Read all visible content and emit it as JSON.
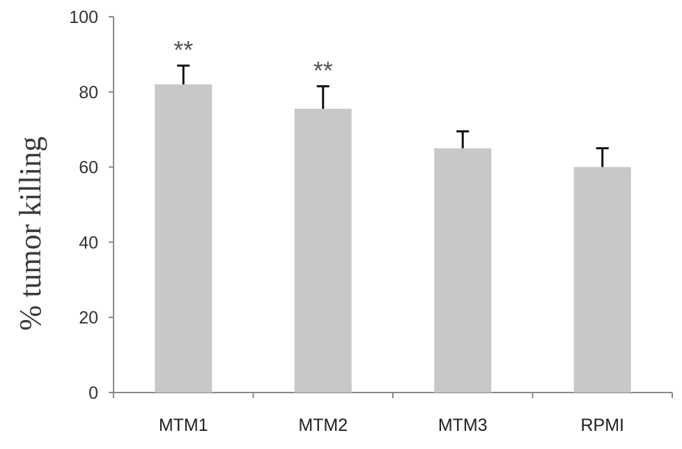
{
  "chart_data": {
    "type": "bar",
    "title": "",
    "xlabel": "",
    "ylabel": "% tumor killing",
    "ylim": [
      0,
      100
    ],
    "yticks": [
      0,
      20,
      40,
      60,
      80,
      100
    ],
    "categories": [
      "MTM1",
      "MTM2",
      "MTM3",
      "RPMI"
    ],
    "values": [
      82,
      75.5,
      65,
      60
    ],
    "errors": [
      5,
      6,
      4.5,
      5
    ],
    "annotations": [
      "**",
      "**",
      "",
      ""
    ],
    "bar_color": "#c8c8c8",
    "error_color": "#111111",
    "axis_color": "#888888",
    "grid": false
  }
}
